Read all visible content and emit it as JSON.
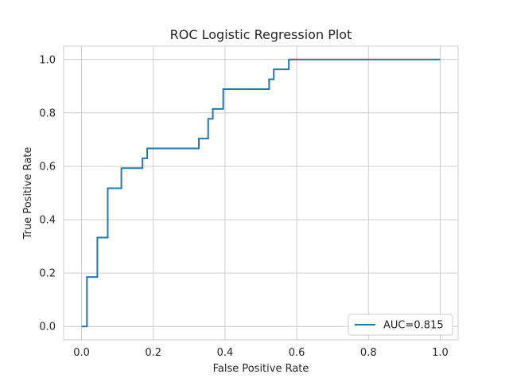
{
  "chart_data": {
    "type": "line",
    "title": "ROC Logistic Regression Plot",
    "xlabel": "False Positive Rate",
    "ylabel": "True Positive Rate",
    "xlim": [
      -0.05,
      1.05
    ],
    "ylim": [
      -0.05,
      1.05
    ],
    "xticks": [
      "0.0",
      "0.2",
      "0.4",
      "0.6",
      "0.8",
      "1.0"
    ],
    "yticks": [
      "0.0",
      "0.2",
      "0.4",
      "0.6",
      "0.8",
      "1.0"
    ],
    "grid": true,
    "legend_position": "lower-right",
    "series": [
      {
        "name": "AUC=0.815",
        "color": "#1f77b4",
        "x": [
          0.0,
          0.015,
          0.015,
          0.044,
          0.044,
          0.073,
          0.073,
          0.111,
          0.111,
          0.17,
          0.17,
          0.183,
          0.183,
          0.327,
          0.327,
          0.353,
          0.353,
          0.366,
          0.366,
          0.395,
          0.395,
          0.523,
          0.523,
          0.536,
          0.536,
          0.578,
          0.578,
          1.0
        ],
        "y": [
          0.0,
          0.0,
          0.185,
          0.185,
          0.333,
          0.333,
          0.518,
          0.518,
          0.593,
          0.593,
          0.63,
          0.63,
          0.667,
          0.667,
          0.704,
          0.704,
          0.778,
          0.778,
          0.815,
          0.815,
          0.889,
          0.889,
          0.926,
          0.926,
          0.963,
          0.963,
          1.0,
          1.0
        ]
      }
    ]
  }
}
